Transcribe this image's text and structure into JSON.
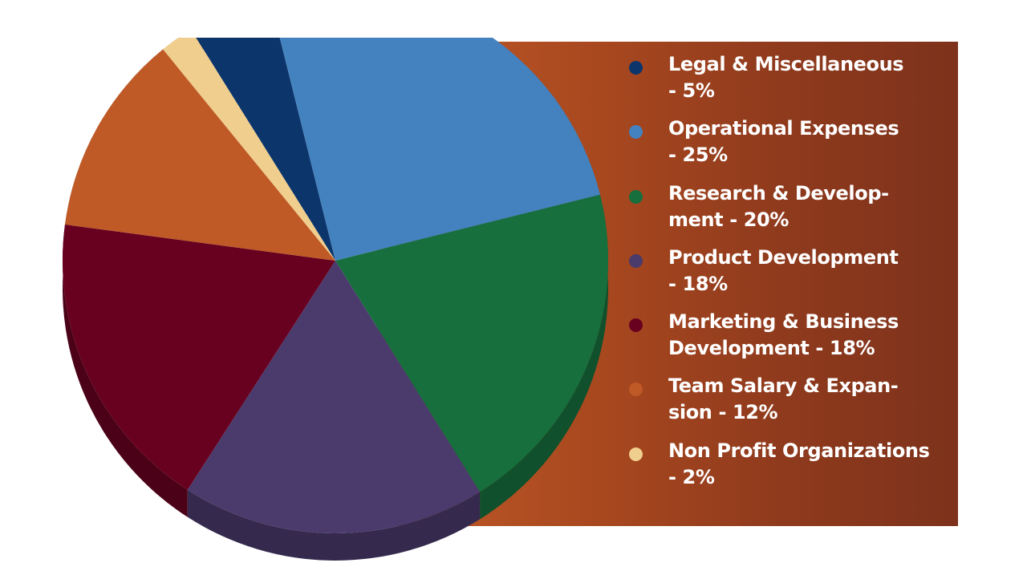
{
  "chart_data": {
    "type": "pie",
    "legend_placement": "right",
    "slices": [
      {
        "name": "Legal & Miscellaneous",
        "value": 5,
        "label": "Legal & Miscellaneous\n- 5%",
        "color": "#0c356b"
      },
      {
        "name": "Operational Expenses",
        "value": 25,
        "label": "Operational Expenses\n- 25%",
        "color": "#4482bf"
      },
      {
        "name": "Research & Development",
        "value": 20,
        "label": "Research & Develop-\nment - 20%",
        "color": "#166f3d"
      },
      {
        "name": "Product Development",
        "value": 18,
        "label": "Product Development\n- 18%",
        "color": "#4a3b6c"
      },
      {
        "name": "Marketing & Business Development",
        "value": 18,
        "label": "Marketing & Business\nDevelopment - 18%",
        "color": "#680120"
      },
      {
        "name": "Team Salary & Expansion",
        "value": 12,
        "label": "Team Salary & Expan-\nsion - 12%",
        "color": "#bf5a27"
      },
      {
        "name": "Non Profit Organizations",
        "value": 2,
        "label": "Non Profit Organizations\n- 2%",
        "color": "#f0ce8e"
      }
    ]
  },
  "colors": {
    "banner_start": "#c25a28",
    "banner_end": "#7d321b",
    "legend_text": "#ffffff"
  }
}
